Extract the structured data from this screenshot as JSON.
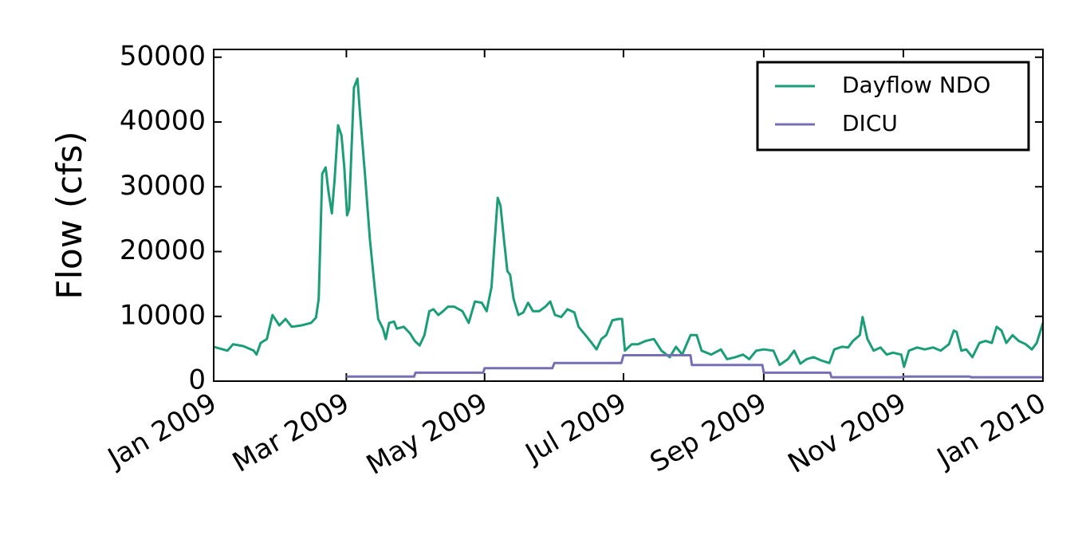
{
  "chart_data": {
    "type": "line",
    "y_label": "Flow (cfs)",
    "xlim": [
      0,
      12
    ],
    "xticks": [
      {
        "value": 0,
        "label": "Jan 2009"
      },
      {
        "value": 1.92,
        "label": "Mar 2009"
      },
      {
        "value": 3.92,
        "label": "May 2009"
      },
      {
        "value": 5.93,
        "label": "Jul 2009"
      },
      {
        "value": 7.96,
        "label": "Sep 2009"
      },
      {
        "value": 9.98,
        "label": "Nov 2009"
      },
      {
        "value": 12,
        "label": "Jan 2010"
      }
    ],
    "ylim": [
      0,
      51200
    ],
    "yticks": [
      0,
      10000,
      20000,
      30000,
      40000,
      50000
    ],
    "legend": "upper right",
    "series": [
      {
        "name": "Dayflow NDO",
        "color": "#1b9e77",
        "x": [
          0,
          0.2,
          0.28,
          0.43,
          0.58,
          0.62,
          0.68,
          0.77,
          0.85,
          0.95,
          1.04,
          1.13,
          1.27,
          1.41,
          1.48,
          1.52,
          1.57,
          1.62,
          1.66,
          1.71,
          1.75,
          1.8,
          1.85,
          1.89,
          1.93,
          1.96,
          2.03,
          2.08,
          2.12,
          2.19,
          2.26,
          2.33,
          2.38,
          2.45,
          2.49,
          2.54,
          2.61,
          2.65,
          2.75,
          2.84,
          2.91,
          2.98,
          3.05,
          3.12,
          3.18,
          3.25,
          3.32,
          3.39,
          3.48,
          3.6,
          3.69,
          3.78,
          3.88,
          3.95,
          4.02,
          4.06,
          4.11,
          4.15,
          4.2,
          4.25,
          4.29,
          4.34,
          4.41,
          4.48,
          4.55,
          4.62,
          4.71,
          4.8,
          4.87,
          4.94,
          5.03,
          5.12,
          5.22,
          5.28,
          5.38,
          5.47,
          5.54,
          5.61,
          5.68,
          5.77,
          5.86,
          5.91,
          5.95,
          6.05,
          6.14,
          6.25,
          6.37,
          6.48,
          6.6,
          6.69,
          6.78,
          6.9,
          6.99,
          7.06,
          7.2,
          7.34,
          7.43,
          7.55,
          7.66,
          7.75,
          7.85,
          7.96,
          8.1,
          8.19,
          8.31,
          8.4,
          8.49,
          8.58,
          8.68,
          8.79,
          8.91,
          8.98,
          9.09,
          9.18,
          9.25,
          9.35,
          9.39,
          9.46,
          9.55,
          9.65,
          9.74,
          9.83,
          9.95,
          9.99,
          10.06,
          10.18,
          10.29,
          10.41,
          10.52,
          10.64,
          10.71,
          10.75,
          10.82,
          10.89,
          10.98,
          11.08,
          11.17,
          11.26,
          11.33,
          11.4,
          11.47,
          11.56,
          11.65,
          11.75,
          11.84,
          11.91,
          12
        ],
        "values": [
          5300,
          4700,
          5700,
          5400,
          4700,
          4100,
          5900,
          6500,
          10200,
          8600,
          9600,
          8400,
          8600,
          9000,
          9800,
          12700,
          32000,
          33000,
          29300,
          25900,
          31200,
          39500,
          37900,
          33000,
          25600,
          26600,
          45300,
          46700,
          41000,
          31800,
          21900,
          14500,
          9600,
          8100,
          6500,
          9000,
          9200,
          8100,
          8400,
          7400,
          6200,
          5500,
          7100,
          10800,
          11100,
          10200,
          10800,
          11500,
          11500,
          10800,
          9000,
          12300,
          12100,
          10800,
          14500,
          20700,
          28300,
          27100,
          21900,
          17000,
          16400,
          12700,
          10200,
          10600,
          12100,
          10800,
          10800,
          11500,
          12300,
          10200,
          9900,
          11100,
          10600,
          8400,
          7100,
          5900,
          4900,
          6500,
          7100,
          9400,
          9600,
          9600,
          4700,
          5700,
          5700,
          6200,
          6500,
          4700,
          3700,
          5300,
          4100,
          7100,
          7100,
          4700,
          4100,
          4900,
          3400,
          3700,
          4100,
          3400,
          4700,
          4900,
          4700,
          2500,
          3400,
          4700,
          2700,
          3400,
          3700,
          3200,
          2800,
          4900,
          5300,
          5200,
          6200,
          7100,
          9900,
          6500,
          4700,
          5200,
          4100,
          4400,
          4100,
          2200,
          4700,
          5200,
          4900,
          5200,
          4700,
          5700,
          7800,
          7600,
          4700,
          4900,
          3700,
          5900,
          6200,
          5900,
          8400,
          7800,
          5900,
          7100,
          6200,
          5700,
          4900,
          5900,
          9000
        ]
      },
      {
        "name": "DICU",
        "color": "#7570b3",
        "x": [
          1.92,
          2.9,
          2.92,
          3.9,
          3.92,
          4.9,
          4.93,
          5.9,
          5.93,
          6.9,
          6.92,
          7.94,
          7.96,
          8.92,
          8.94,
          9.96,
          9.98,
          10.94,
          10.96,
          12
        ],
        "values": [
          700,
          700,
          1300,
          1300,
          2000,
          2000,
          2800,
          2800,
          4000,
          4000,
          2500,
          2500,
          1300,
          1300,
          600,
          600,
          700,
          700,
          600,
          600
        ]
      }
    ]
  }
}
